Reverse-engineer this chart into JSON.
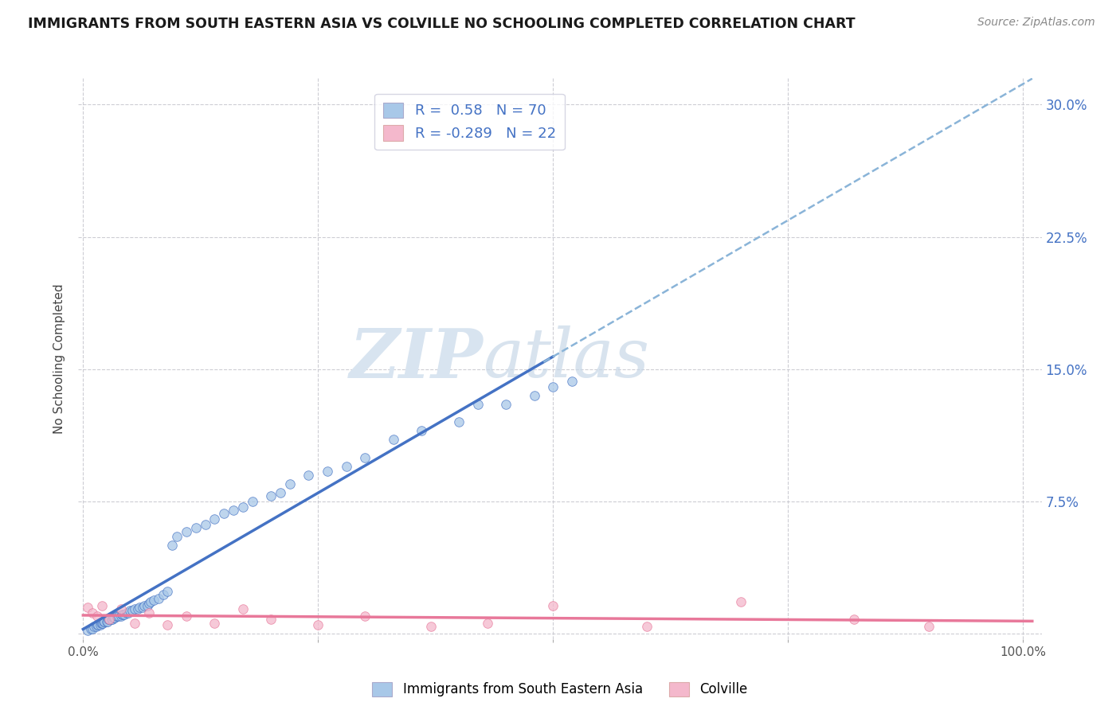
{
  "title": "IMMIGRANTS FROM SOUTH EASTERN ASIA VS COLVILLE NO SCHOOLING COMPLETED CORRELATION CHART",
  "source": "Source: ZipAtlas.com",
  "ylabel": "No Schooling Completed",
  "r_blue": 0.58,
  "n_blue": 70,
  "r_pink": -0.289,
  "n_pink": 22,
  "xlim": [
    -0.005,
    1.02
  ],
  "ylim": [
    -0.003,
    0.315
  ],
  "xticks": [
    0.0,
    0.25,
    0.5,
    0.75,
    1.0
  ],
  "xticklabels": [
    "0.0%",
    "",
    "",
    "",
    "100.0%"
  ],
  "yticks": [
    0.0,
    0.075,
    0.15,
    0.225,
    0.3
  ],
  "ylabels_left": [
    "",
    "",
    "",
    "",
    ""
  ],
  "ylabels_right": [
    "",
    "7.5%",
    "15.0%",
    "22.5%",
    "30.0%"
  ],
  "color_blue": "#A8C8E8",
  "color_pink": "#F4B8CC",
  "color_blue_line": "#4472C4",
  "color_pink_line": "#E8789A",
  "color_dashed": "#8AB4D8",
  "background": "#FFFFFF",
  "grid_color": "#C8C8D0",
  "watermark_color": "#D8E4F0",
  "blue_x": [
    0.005,
    0.008,
    0.01,
    0.012,
    0.014,
    0.015,
    0.016,
    0.018,
    0.019,
    0.02,
    0.021,
    0.022,
    0.023,
    0.025,
    0.026,
    0.027,
    0.028,
    0.03,
    0.031,
    0.032,
    0.033,
    0.034,
    0.035,
    0.036,
    0.038,
    0.04,
    0.041,
    0.042,
    0.044,
    0.046,
    0.048,
    0.05,
    0.052,
    0.055,
    0.058,
    0.06,
    0.063,
    0.065,
    0.068,
    0.07,
    0.072,
    0.075,
    0.08,
    0.085,
    0.09,
    0.095,
    0.1,
    0.11,
    0.12,
    0.13,
    0.14,
    0.15,
    0.16,
    0.17,
    0.18,
    0.2,
    0.21,
    0.22,
    0.24,
    0.26,
    0.28,
    0.3,
    0.33,
    0.36,
    0.4,
    0.42,
    0.45,
    0.48,
    0.5,
    0.52
  ],
  "blue_y": [
    0.002,
    0.003,
    0.003,
    0.004,
    0.004,
    0.005,
    0.005,
    0.005,
    0.006,
    0.006,
    0.006,
    0.007,
    0.007,
    0.007,
    0.007,
    0.008,
    0.008,
    0.008,
    0.008,
    0.009,
    0.009,
    0.009,
    0.01,
    0.01,
    0.01,
    0.01,
    0.011,
    0.011,
    0.011,
    0.012,
    0.012,
    0.013,
    0.013,
    0.014,
    0.014,
    0.015,
    0.015,
    0.016,
    0.016,
    0.017,
    0.018,
    0.019,
    0.02,
    0.022,
    0.024,
    0.05,
    0.055,
    0.058,
    0.06,
    0.062,
    0.065,
    0.068,
    0.07,
    0.072,
    0.075,
    0.078,
    0.08,
    0.085,
    0.09,
    0.092,
    0.095,
    0.1,
    0.11,
    0.115,
    0.12,
    0.13,
    0.13,
    0.135,
    0.14,
    0.143
  ],
  "pink_x": [
    0.005,
    0.01,
    0.015,
    0.02,
    0.028,
    0.04,
    0.055,
    0.07,
    0.09,
    0.11,
    0.14,
    0.17,
    0.2,
    0.25,
    0.3,
    0.37,
    0.43,
    0.5,
    0.6,
    0.7,
    0.82,
    0.9
  ],
  "pink_y": [
    0.015,
    0.012,
    0.01,
    0.016,
    0.008,
    0.014,
    0.006,
    0.012,
    0.005,
    0.01,
    0.006,
    0.014,
    0.008,
    0.005,
    0.01,
    0.004,
    0.006,
    0.016,
    0.004,
    0.018,
    0.008,
    0.004
  ],
  "legend_label_blue": "Immigrants from South Eastern Asia",
  "legend_label_pink": "Colville",
  "blue_line_solid_end": 0.5,
  "blue_line_dash_start": 0.49,
  "blue_line_dash_end": 1.01
}
